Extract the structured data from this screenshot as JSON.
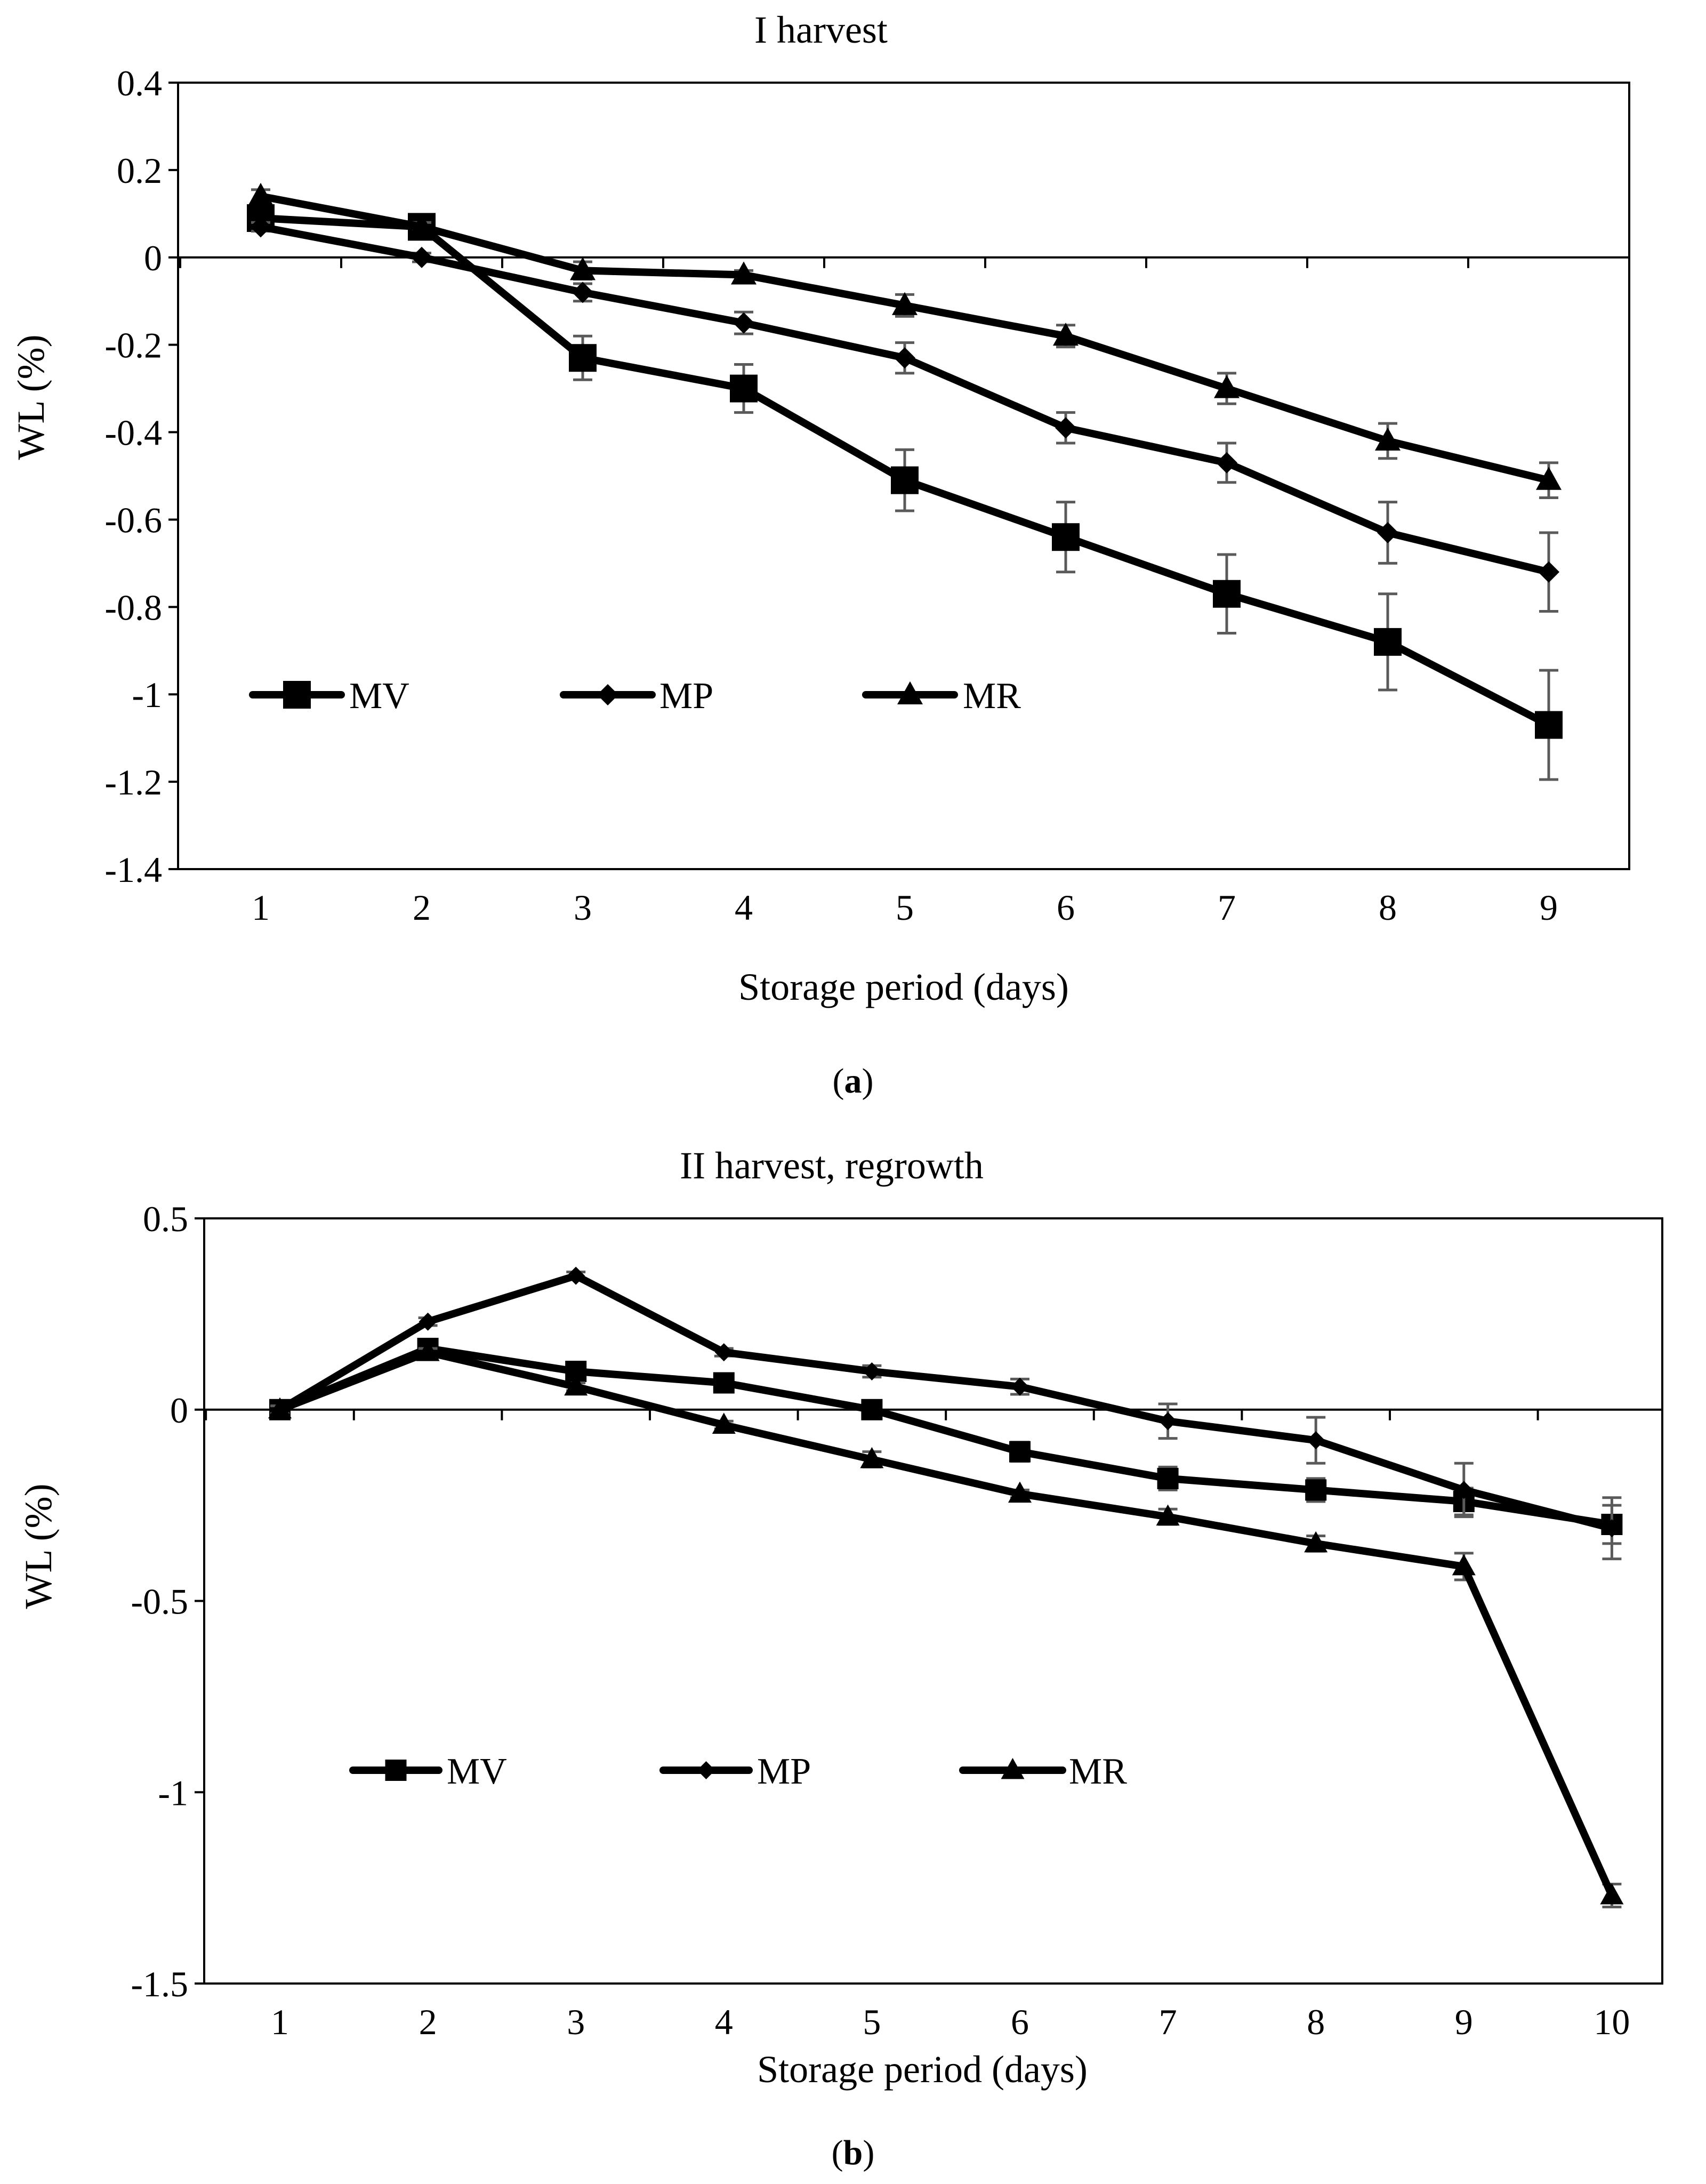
{
  "chart_data": [
    {
      "type": "line",
      "title": "I harvest",
      "xlabel": "Storage period (days)",
      "ylabel": "WL (%)",
      "caption_open": "(",
      "caption_letter": "a",
      "caption_close": ")",
      "categories": [
        "1",
        "2",
        "3",
        "4",
        "5",
        "6",
        "7",
        "8",
        "9"
      ],
      "ylim": [
        -1.4,
        0.4
      ],
      "yticks": [
        0.4,
        0.2,
        0,
        -0.2,
        -0.4,
        -0.6,
        -0.8,
        -1,
        -1.2,
        -1.4
      ],
      "ytick_labels": [
        "0.4",
        "0.2",
        "0",
        "-0.2",
        "-0.4",
        "-0.6",
        "-0.8",
        "-1",
        "-1.2",
        "-1.4"
      ],
      "series": [
        {
          "name": "MV",
          "marker": "square",
          "values": [
            0.09,
            0.07,
            -0.23,
            -0.3,
            -0.51,
            -0.64,
            -0.77,
            -0.88,
            -1.07
          ],
          "errors": [
            0.02,
            0.01,
            0.05,
            0.055,
            0.07,
            0.08,
            0.09,
            0.11,
            0.125
          ]
        },
        {
          "name": "MP",
          "marker": "diamond",
          "values": [
            0.07,
            0.0,
            -0.08,
            -0.15,
            -0.23,
            -0.39,
            -0.47,
            -0.63,
            -0.72
          ],
          "errors": [
            0.01,
            0.01,
            0.02,
            0.025,
            0.035,
            0.035,
            0.045,
            0.07,
            0.09
          ]
        },
        {
          "name": "MR",
          "marker": "triangle",
          "values": [
            0.14,
            0.07,
            -0.03,
            -0.04,
            -0.11,
            -0.18,
            -0.3,
            -0.42,
            -0.51
          ],
          "errors": [
            0.015,
            0.01,
            0.02,
            0.01,
            0.025,
            0.025,
            0.035,
            0.04,
            0.04
          ]
        }
      ]
    },
    {
      "type": "line",
      "title": "II harvest, regrowth",
      "xlabel": "Storage period (days)",
      "ylabel": "WL (%)",
      "caption_open": "(",
      "caption_letter": "b",
      "caption_close": ")",
      "categories": [
        "1",
        "2",
        "3",
        "4",
        "5",
        "6",
        "7",
        "8",
        "9",
        "10"
      ],
      "ylim": [
        -1.5,
        0.5
      ],
      "yticks": [
        0.5,
        0,
        -0.5,
        -1,
        -1.5
      ],
      "ytick_labels": [
        "0.5",
        "0",
        "-0.5",
        "-1",
        "-1.5"
      ],
      "series": [
        {
          "name": "MV",
          "marker": "square",
          "values": [
            0.0,
            0.16,
            0.1,
            0.07,
            0.0,
            -0.11,
            -0.18,
            -0.21,
            -0.24,
            -0.3
          ],
          "errors": [
            0.01,
            0.015,
            0.01,
            0.01,
            0.01,
            0.025,
            0.03,
            0.03,
            0.035,
            0.05
          ]
        },
        {
          "name": "MP",
          "marker": "diamond",
          "values": [
            0.0,
            0.23,
            0.35,
            0.15,
            0.1,
            0.06,
            -0.03,
            -0.08,
            -0.21,
            -0.31
          ],
          "errors": [
            0.01,
            0.01,
            0.01,
            0.01,
            0.015,
            0.02,
            0.045,
            0.06,
            0.07,
            0.08
          ]
        },
        {
          "name": "MR",
          "marker": "triangle",
          "values": [
            0.0,
            0.15,
            0.06,
            -0.04,
            -0.13,
            -0.22,
            -0.28,
            -0.35,
            -0.41,
            -1.27
          ],
          "errors": [
            0.01,
            0.01,
            0.01,
            0.01,
            0.02,
            0.01,
            0.02,
            0.02,
            0.035,
            0.03
          ]
        }
      ]
    }
  ]
}
